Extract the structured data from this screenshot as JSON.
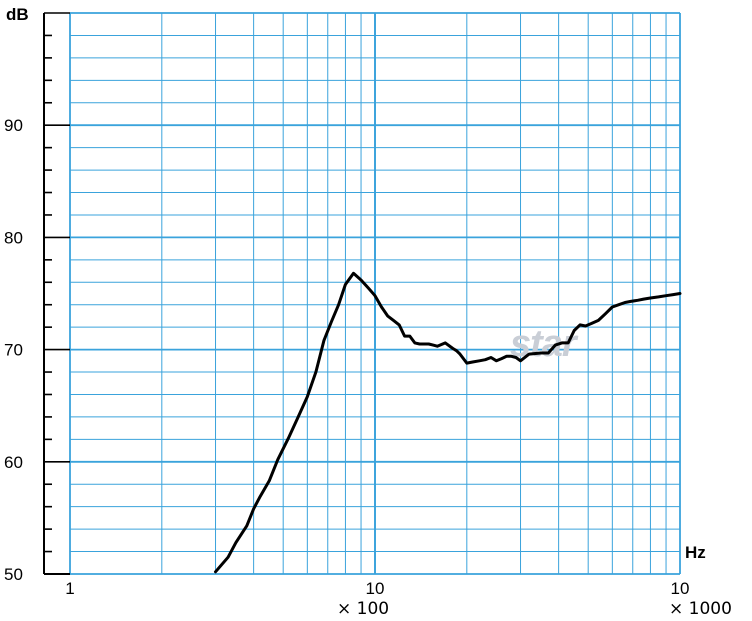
{
  "chart_data": {
    "type": "line",
    "ylabel": "dB",
    "xlabel": "Hz",
    "x_scale": "log",
    "xlim": [
      100,
      10000
    ],
    "ylim": [
      50,
      100
    ],
    "x_ticks": [
      {
        "value": 100,
        "label": "1"
      },
      {
        "value": 1000,
        "label": "10"
      },
      {
        "value": 10000,
        "label": "10"
      }
    ],
    "x_multipliers": [
      "× 100",
      "× 1000"
    ],
    "y_ticks": [
      {
        "value": 50,
        "label": "50"
      },
      {
        "value": 60,
        "label": "60"
      },
      {
        "value": 70,
        "label": "70"
      },
      {
        "value": 80,
        "label": "80"
      },
      {
        "value": 90,
        "label": "90"
      }
    ],
    "grid": true,
    "logo_text": "star",
    "colors": {
      "grid": "#3aa3dc",
      "line": "#000000",
      "logo": "#c9ced6"
    },
    "series": [
      {
        "x": [
          300,
          330,
          350,
          380,
          400,
          420,
          450,
          480,
          520,
          560,
          600,
          640,
          680,
          720,
          760,
          800,
          850,
          900,
          950,
          1000,
          1050,
          1100,
          1150,
          1200,
          1250,
          1300,
          1350,
          1400,
          1500,
          1550,
          1600,
          1700,
          1800,
          1850,
          1900,
          2000,
          2100,
          2200,
          2300,
          2400,
          2500,
          2600,
          2700,
          2800,
          2900,
          3000,
          3200,
          3500,
          3700,
          3900,
          4100,
          4300,
          4500,
          4700,
          4900,
          5100,
          5400,
          5700,
          6000,
          6300,
          6600,
          6900,
          7300,
          7600,
          8000,
          8500,
          9000,
          9500,
          10000
        ],
        "y": [
          50.2,
          51.5,
          52.8,
          54.3,
          55.8,
          56.9,
          58.3,
          60.2,
          62.1,
          64.0,
          65.8,
          68.0,
          70.8,
          72.5,
          74.0,
          75.8,
          76.8,
          76.2,
          75.5,
          74.8,
          73.8,
          73.0,
          72.6,
          72.2,
          71.2,
          71.2,
          70.6,
          70.5,
          70.5,
          70.4,
          70.3,
          70.6,
          70.1,
          69.9,
          69.6,
          68.8,
          68.9,
          69.0,
          69.1,
          69.3,
          69.0,
          69.2,
          69.4,
          69.4,
          69.3,
          69.0,
          69.6,
          69.7,
          69.7,
          70.4,
          70.6,
          70.6,
          71.7,
          72.2,
          72.1,
          72.3,
          72.6,
          73.2,
          73.8,
          74.0,
          74.2,
          74.3,
          74.4,
          74.5,
          74.6,
          74.7,
          74.8,
          74.9,
          75.0
        ]
      }
    ]
  }
}
